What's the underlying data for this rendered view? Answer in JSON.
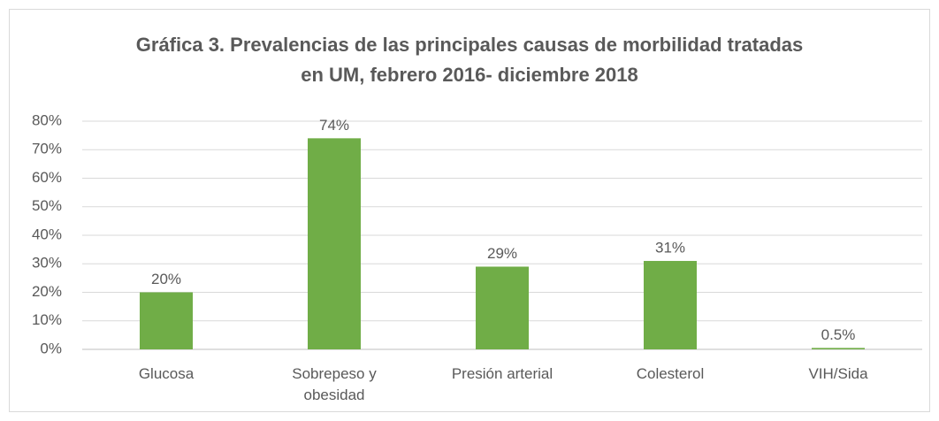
{
  "chart_data": {
    "type": "bar",
    "title": "Gráfica 3. Prevalencias de las principales causas de morbilidad tratadas en UM, febrero 2016- diciembre 2018",
    "categories": [
      "Glucosa",
      "Sobrepeso y obesidad",
      "Presión arterial",
      "Colesterol",
      "VIH/Sida"
    ],
    "values": [
      20,
      74,
      29,
      31,
      0.5
    ],
    "value_labels": [
      "20%",
      "74%",
      "29%",
      "31%",
      "0.5%"
    ],
    "color": "#70ad47",
    "ylim": [
      0,
      80
    ],
    "yticks": [
      {
        "value": 0,
        "label": "0%"
      },
      {
        "value": 10,
        "label": "10%"
      },
      {
        "value": 20,
        "label": "20%"
      },
      {
        "value": 30,
        "label": "30%"
      },
      {
        "value": 40,
        "label": "40%"
      },
      {
        "value": 50,
        "label": "50%"
      },
      {
        "value": 60,
        "label": "60%"
      },
      {
        "value": 70,
        "label": "70%"
      },
      {
        "value": 80,
        "label": "80%"
      }
    ],
    "grid": true
  }
}
